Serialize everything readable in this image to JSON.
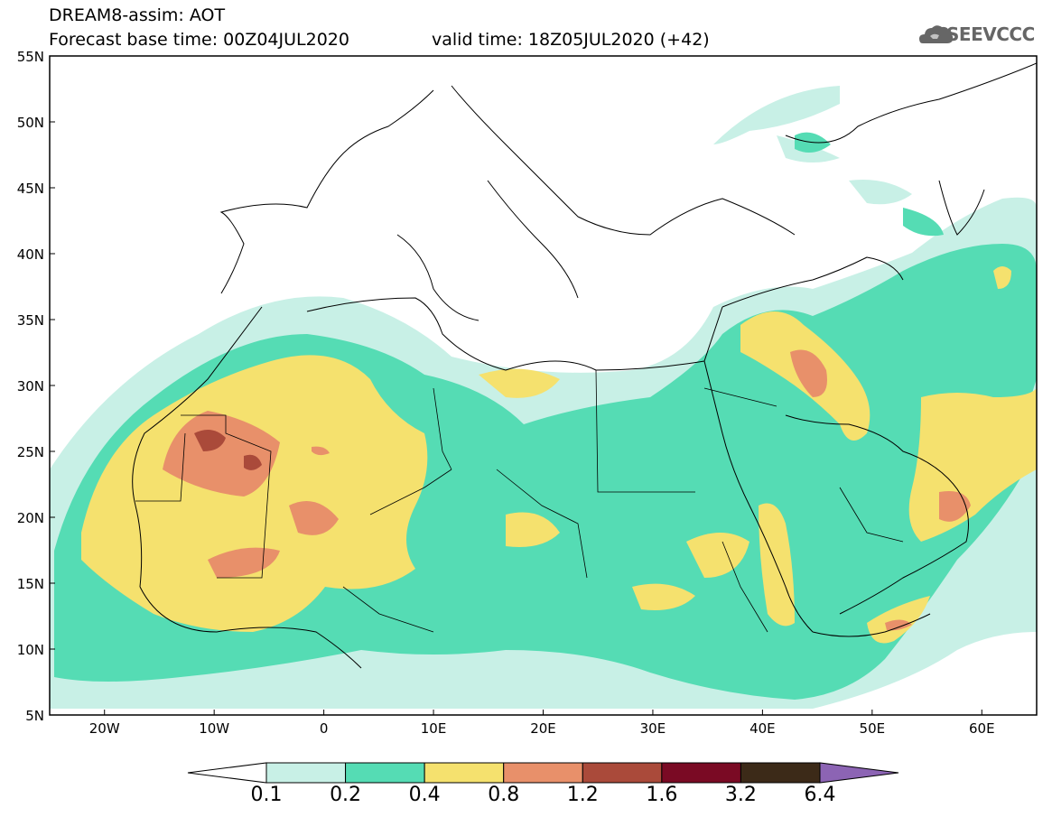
{
  "header": {
    "line1": "DREAM8-assim: AOT",
    "line2": "Forecast base time: 00Z04JUL2020",
    "line2b": "valid time: 18Z05JUL2020 (+42)"
  },
  "logo": {
    "text": "SEEVCCC",
    "icon": "cloud-icon"
  },
  "map": {
    "extent": {
      "lon": [
        -25,
        65
      ],
      "lat": [
        5,
        55
      ]
    },
    "lat_ticks": [
      "5N",
      "10N",
      "15N",
      "20N",
      "25N",
      "30N",
      "35N",
      "40N",
      "45N",
      "50N",
      "55N"
    ],
    "lon_ticks": [
      "20W",
      "10W",
      "0",
      "10E",
      "20E",
      "30E",
      "40E",
      "50E",
      "60E"
    ]
  },
  "colorbar": {
    "levels": [
      "0.1",
      "0.2",
      "0.4",
      "0.8",
      "1.2",
      "1.6",
      "3.2",
      "6.4"
    ],
    "colors": [
      "#ffffff",
      "#c8f0e6",
      "#55dcb4",
      "#f5e16e",
      "#e8906a",
      "#aa4a3a",
      "#7a0a24",
      "#3c2a18",
      "#8c64b4"
    ]
  }
}
